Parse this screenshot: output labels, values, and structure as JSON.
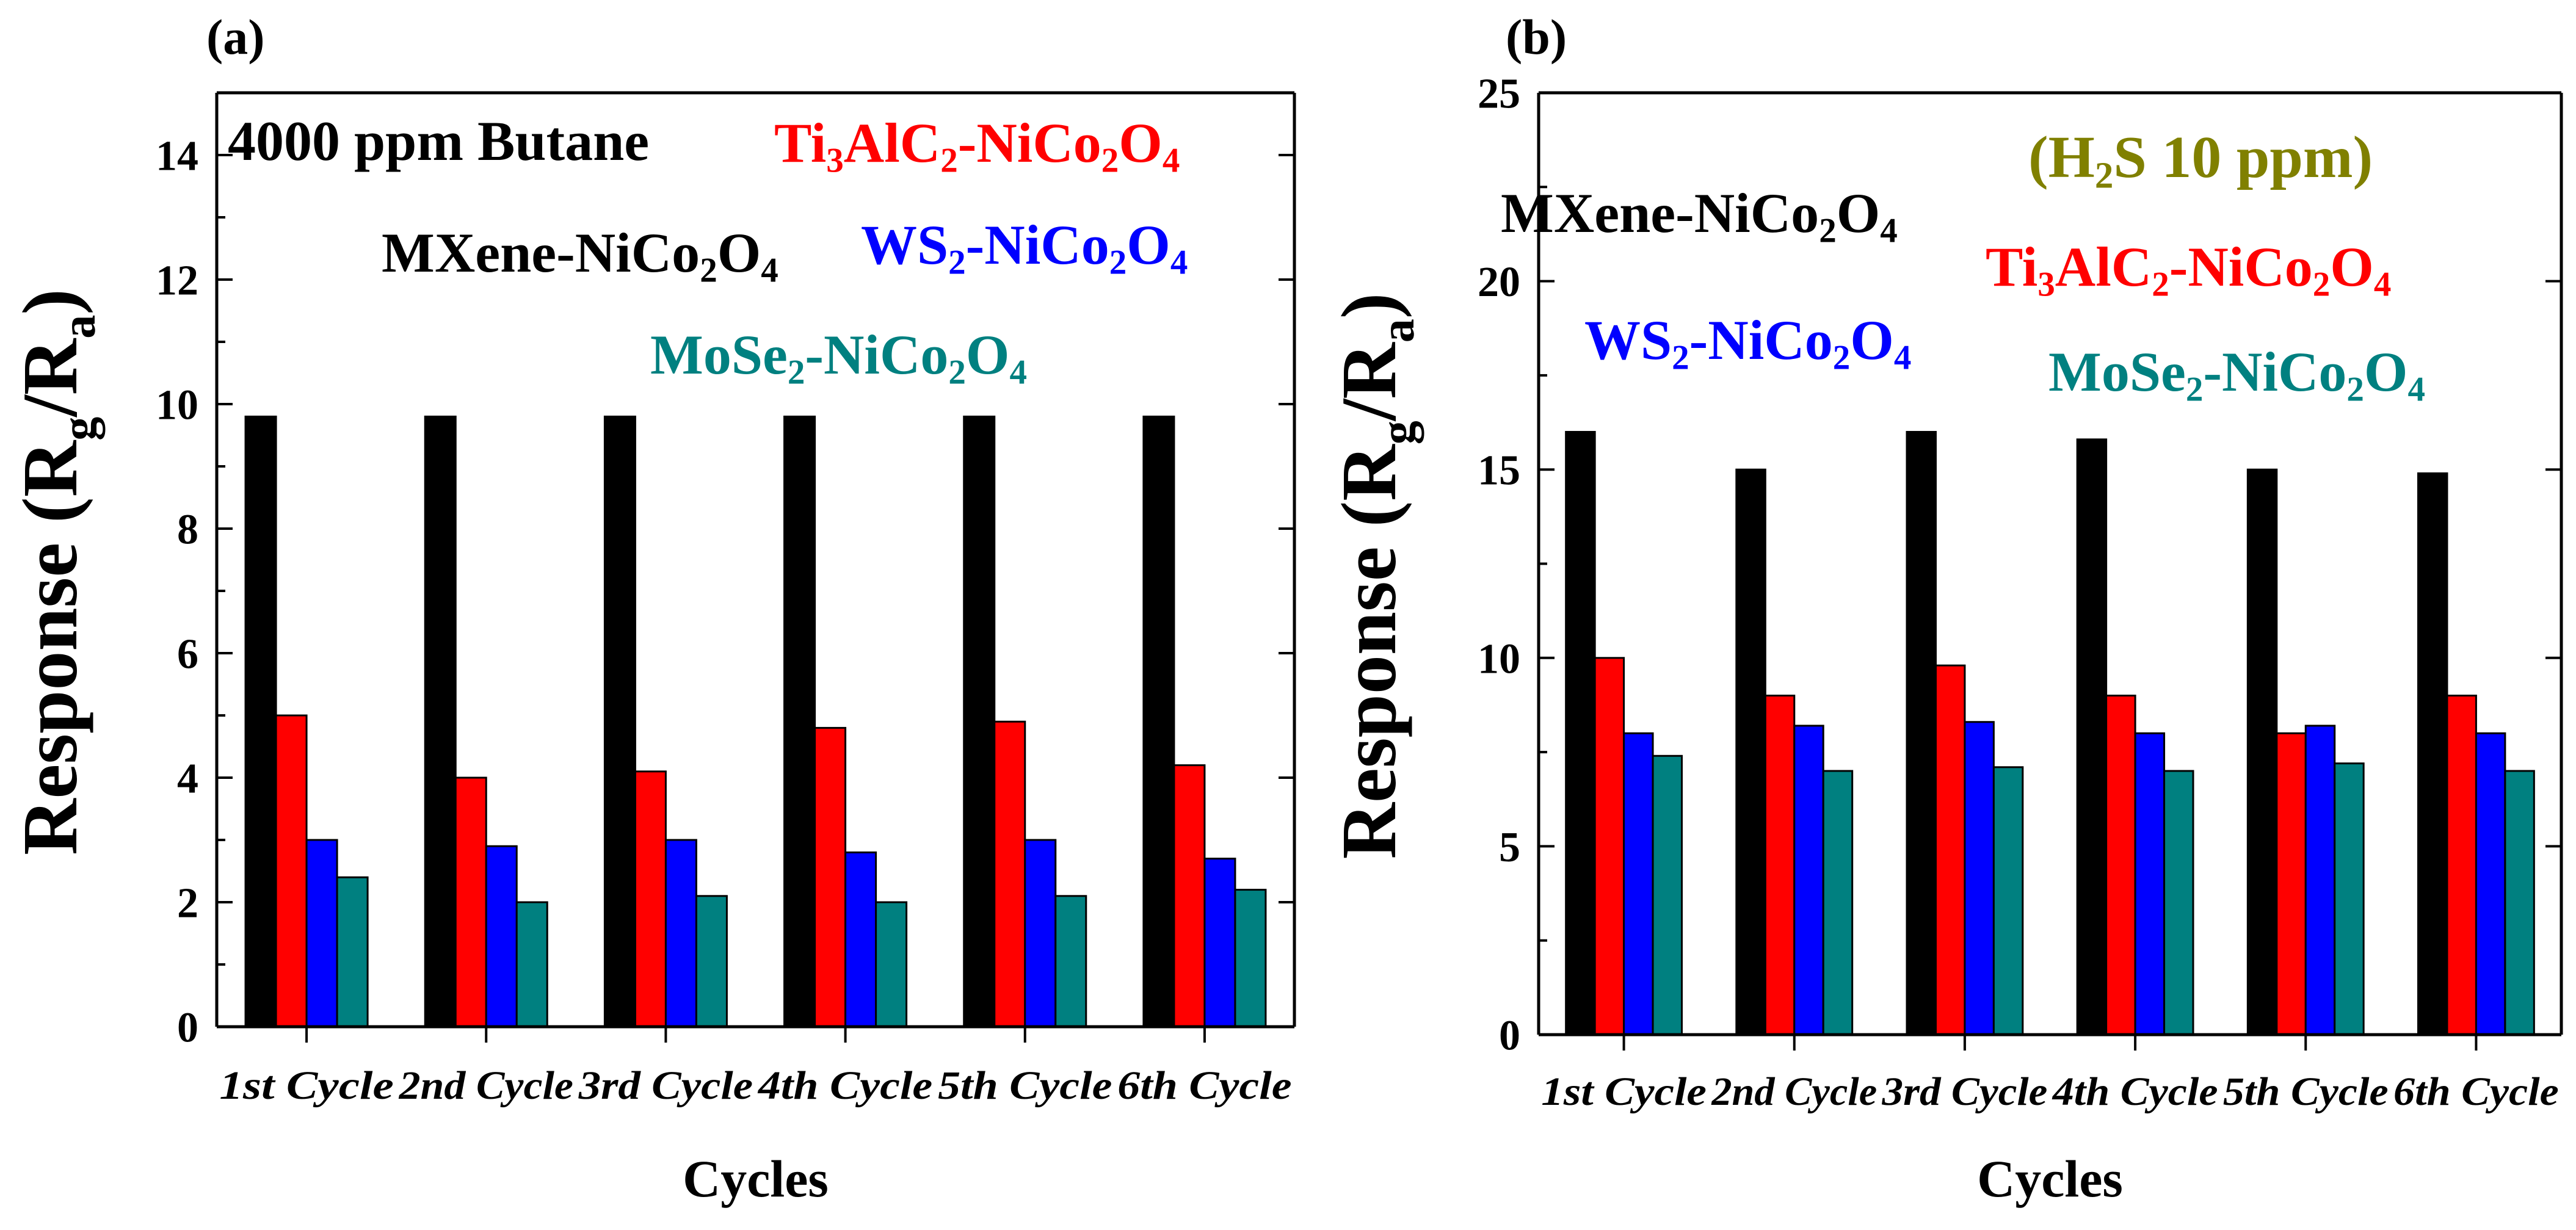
{
  "chart_data": [
    {
      "id": "a",
      "panel_label": "(a)",
      "type": "bar",
      "title": "4000 ppm Butane",
      "xlabel": "Cycles",
      "ylabel_parts": {
        "main": "Response (R",
        "sub1": "g",
        "mid": "/R",
        "sub2": "a",
        "end": ")"
      },
      "ylim": [
        0,
        15
      ],
      "yticks": [
        0,
        2,
        4,
        6,
        8,
        10,
        12,
        14
      ],
      "categories": [
        "1st Cycle",
        "2nd Cycle",
        "3rd Cycle",
        "4th Cycle",
        "5th Cycle",
        "6th Cycle"
      ],
      "grid": false,
      "series": [
        {
          "name": "MXene-NiCo2O4",
          "legend_parts": [
            "MXene-NiCo",
            "2",
            "O",
            "4"
          ],
          "color": "#000000",
          "values": [
            9.8,
            9.8,
            9.8,
            9.8,
            9.8,
            9.8
          ]
        },
        {
          "name": "Ti3AlC2-NiCo2O4",
          "legend_parts": [
            "Ti",
            "3",
            "AlC",
            "2",
            "-NiCo",
            "2",
            "O",
            "4"
          ],
          "color": "#ff0000",
          "values": [
            5.0,
            4.0,
            4.1,
            4.8,
            4.9,
            4.2
          ]
        },
        {
          "name": "WS2-NiCo2O4",
          "legend_parts": [
            "WS",
            "2",
            "-NiCo",
            "2",
            "O",
            "4"
          ],
          "color": "#0000ff",
          "values": [
            3.0,
            2.9,
            3.0,
            2.8,
            3.0,
            2.7
          ]
        },
        {
          "name": "MoSe2-NiCo2O4",
          "legend_parts": [
            "MoSe",
            "2",
            "-NiCo",
            "2",
            "O",
            "4"
          ],
          "color": "#008080",
          "values": [
            2.4,
            2.0,
            2.1,
            2.0,
            2.1,
            2.2
          ]
        }
      ]
    },
    {
      "id": "b",
      "panel_label": "(b)",
      "type": "bar",
      "title": "(H2S 10 ppm)",
      "title_parts": [
        "(H",
        "2",
        "S 10 ppm)"
      ],
      "title_color": "#808000",
      "xlabel": "Cycles",
      "ylabel_parts": {
        "main": "Response (R",
        "sub1": "g",
        "mid": "/R",
        "sub2": "a",
        "end": ")"
      },
      "ylim": [
        0,
        25
      ],
      "yticks": [
        0,
        5,
        10,
        15,
        20,
        25
      ],
      "categories": [
        "1st Cycle",
        "2nd Cycle",
        "3rd Cycle",
        "4th Cycle",
        "5th Cycle",
        "6th Cycle"
      ],
      "grid": false,
      "series": [
        {
          "name": "MXene-NiCo2O4",
          "legend_parts": [
            "MXene-NiCo",
            "2",
            "O",
            "4"
          ],
          "color": "#000000",
          "values": [
            16.0,
            15.0,
            16.0,
            15.8,
            15.0,
            14.9
          ]
        },
        {
          "name": "Ti3AlC2-NiCo2O4",
          "legend_parts": [
            "Ti",
            "3",
            "AlC",
            "2",
            "-NiCo",
            "2",
            "O",
            "4"
          ],
          "color": "#ff0000",
          "values": [
            10.0,
            9.0,
            9.8,
            9.0,
            8.0,
            9.0
          ]
        },
        {
          "name": "WS2-NiCo2O4",
          "legend_parts": [
            "WS",
            "2",
            "-NiCo",
            "2",
            "O",
            "4"
          ],
          "color": "#0000ff",
          "values": [
            8.0,
            8.2,
            8.3,
            8.0,
            8.2,
            8.0
          ]
        },
        {
          "name": "MoSe2-NiCo2O4",
          "legend_parts": [
            "MoSe",
            "2",
            "-NiCo",
            "2",
            "O",
            "4"
          ],
          "color": "#008080",
          "values": [
            7.4,
            7.0,
            7.1,
            7.0,
            7.2,
            7.0
          ]
        }
      ]
    }
  ]
}
